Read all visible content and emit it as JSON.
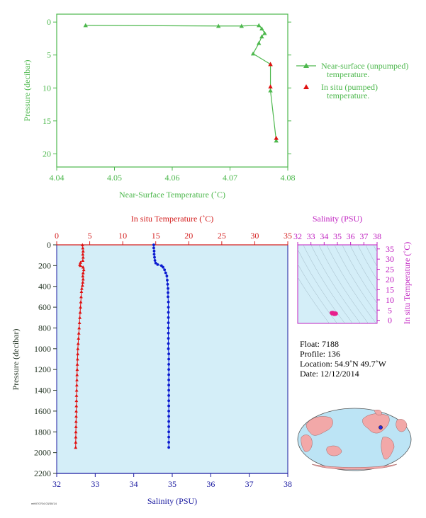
{
  "chart_data": [
    {
      "type": "line",
      "xlabel": "Near-Surface Temperature (˚C)",
      "ylabel": "Pressure (decibar)",
      "xlim": [
        4.04,
        4.08
      ],
      "ylim": [
        22,
        -1.2
      ],
      "xticks": [
        "4.04",
        "4.05",
        "4.06",
        "4.07",
        "4.08"
      ],
      "yticks": [
        "0",
        "5",
        "10",
        "15",
        "20"
      ],
      "series": [
        {
          "name": "Near-surface (unpumped) temperature.",
          "color": "#4db84d",
          "marker": "triangle",
          "points": [
            [
              4.045,
              0.5
            ],
            [
              4.068,
              0.6
            ],
            [
              4.072,
              0.6
            ],
            [
              4.075,
              0.5
            ],
            [
              4.0755,
              1.0
            ],
            [
              4.076,
              1.7
            ],
            [
              4.0755,
              2.2
            ],
            [
              4.075,
              3.2
            ],
            [
              4.074,
              4.8
            ],
            [
              4.077,
              6.4
            ],
            [
              4.077,
              10.4
            ],
            [
              4.078,
              18.0
            ]
          ]
        },
        {
          "name": "In situ (pumped) temperature.",
          "color": "#e01010",
          "marker": "triangle",
          "points": [
            [
              4.077,
              6.4
            ],
            [
              4.077,
              9.8
            ],
            [
              4.078,
              17.6
            ]
          ]
        }
      ],
      "legend_position": "right"
    },
    {
      "type": "line",
      "ylabel": "Pressure (decibar)",
      "xlabel_top": "In situ Temperature (˚C)",
      "xlabel_bottom": "Salinity (PSU)",
      "ylim": [
        2200,
        0
      ],
      "temp_xlim": [
        0,
        35
      ],
      "sal_xlim": [
        32,
        38
      ],
      "yticks": [
        "0",
        "200",
        "400",
        "600",
        "800",
        "1000",
        "1200",
        "1400",
        "1600",
        "1800",
        "2000",
        "2200"
      ],
      "temp_ticks": [
        "0",
        "5",
        "10",
        "15",
        "20",
        "25",
        "30",
        "35"
      ],
      "sal_ticks": [
        "32",
        "33",
        "34",
        "35",
        "36",
        "37",
        "38"
      ],
      "background": "#d4eef8",
      "temperature": {
        "color": "#e01010",
        "values": [
          [
            3.9,
            0
          ],
          [
            3.95,
            30
          ],
          [
            4.0,
            60
          ],
          [
            3.95,
            90
          ],
          [
            4.0,
            120
          ],
          [
            3.95,
            150
          ],
          [
            3.6,
            170
          ],
          [
            3.5,
            190
          ],
          [
            3.6,
            200
          ],
          [
            4.0,
            215
          ],
          [
            4.1,
            240
          ],
          [
            4.0,
            270
          ],
          [
            3.95,
            300
          ],
          [
            4.0,
            330
          ],
          [
            3.95,
            360
          ],
          [
            3.9,
            390
          ],
          [
            3.8,
            420
          ],
          [
            3.75,
            450
          ],
          [
            3.7,
            500
          ],
          [
            3.65,
            550
          ],
          [
            3.6,
            600
          ],
          [
            3.55,
            650
          ],
          [
            3.5,
            700
          ],
          [
            3.45,
            750
          ],
          [
            3.4,
            800
          ],
          [
            3.35,
            850
          ],
          [
            3.3,
            900
          ],
          [
            3.25,
            950
          ],
          [
            3.2,
            1000
          ],
          [
            3.18,
            1050
          ],
          [
            3.15,
            1100
          ],
          [
            3.12,
            1150
          ],
          [
            3.1,
            1200
          ],
          [
            3.08,
            1250
          ],
          [
            3.06,
            1300
          ],
          [
            3.04,
            1350
          ],
          [
            3.02,
            1400
          ],
          [
            3.0,
            1450
          ],
          [
            2.99,
            1500
          ],
          [
            2.98,
            1550
          ],
          [
            2.96,
            1600
          ],
          [
            2.95,
            1650
          ],
          [
            2.93,
            1700
          ],
          [
            2.92,
            1750
          ],
          [
            2.9,
            1800
          ],
          [
            2.89,
            1850
          ],
          [
            2.88,
            1900
          ],
          [
            2.87,
            1950
          ]
        ]
      },
      "salinity": {
        "color": "#0a1ad0",
        "values": [
          [
            34.52,
            0
          ],
          [
            34.52,
            30
          ],
          [
            34.53,
            60
          ],
          [
            34.53,
            90
          ],
          [
            34.54,
            120
          ],
          [
            34.55,
            150
          ],
          [
            34.57,
            175
          ],
          [
            34.62,
            190
          ],
          [
            34.72,
            200
          ],
          [
            34.76,
            215
          ],
          [
            34.8,
            240
          ],
          [
            34.83,
            270
          ],
          [
            34.86,
            300
          ],
          [
            34.87,
            340
          ],
          [
            34.88,
            380
          ],
          [
            34.89,
            420
          ],
          [
            34.89,
            460
          ],
          [
            34.89,
            500
          ],
          [
            34.9,
            550
          ],
          [
            34.9,
            600
          ],
          [
            34.9,
            650
          ],
          [
            34.9,
            700
          ],
          [
            34.9,
            750
          ],
          [
            34.9,
            800
          ],
          [
            34.9,
            850
          ],
          [
            34.9,
            900
          ],
          [
            34.9,
            950
          ],
          [
            34.9,
            1000
          ],
          [
            34.91,
            1050
          ],
          [
            34.91,
            1100
          ],
          [
            34.91,
            1150
          ],
          [
            34.91,
            1200
          ],
          [
            34.91,
            1250
          ],
          [
            34.91,
            1300
          ],
          [
            34.91,
            1350
          ],
          [
            34.91,
            1400
          ],
          [
            34.91,
            1450
          ],
          [
            34.91,
            1500
          ],
          [
            34.91,
            1550
          ],
          [
            34.91,
            1600
          ],
          [
            34.91,
            1650
          ],
          [
            34.91,
            1700
          ],
          [
            34.91,
            1750
          ],
          [
            34.91,
            1800
          ],
          [
            34.91,
            1850
          ],
          [
            34.91,
            1900
          ],
          [
            34.91,
            1950
          ]
        ]
      }
    },
    {
      "type": "scatter",
      "xlabel": "Salinity (PSU)",
      "ylabel": "In situ Temperature (˚C)",
      "xlim": [
        32,
        38
      ],
      "ylim": [
        -1.5,
        37
      ],
      "xticks": [
        "32",
        "33",
        "34",
        "35",
        "36",
        "37",
        "38"
      ],
      "yticks": [
        "0",
        "5",
        "10",
        "15",
        "20",
        "25",
        "30",
        "35"
      ],
      "background": "#d4eef8",
      "color": "#e81e8c",
      "points": [
        [
          34.6,
          3.3
        ],
        [
          34.7,
          3.5
        ],
        [
          34.8,
          3.6
        ],
        [
          34.9,
          3.4
        ],
        [
          34.85,
          3.1
        ],
        [
          34.75,
          3.0
        ],
        [
          34.9,
          3.2
        ],
        [
          34.65,
          3.8
        ],
        [
          34.55,
          3.7
        ]
      ]
    }
  ],
  "info": {
    "float": "Float:  7188",
    "profile": "Profile:  136",
    "location": "Location:  54.9˚N  49.7˚W",
    "date": "Date:  12/12/2014"
  },
  "map": {
    "marker_lat": 54.9,
    "marker_lon": -49.7,
    "ocean_color": "#bce4f5",
    "land_color": "#f2a8a8"
  },
  "footer": "mfr070704 03/30/14"
}
